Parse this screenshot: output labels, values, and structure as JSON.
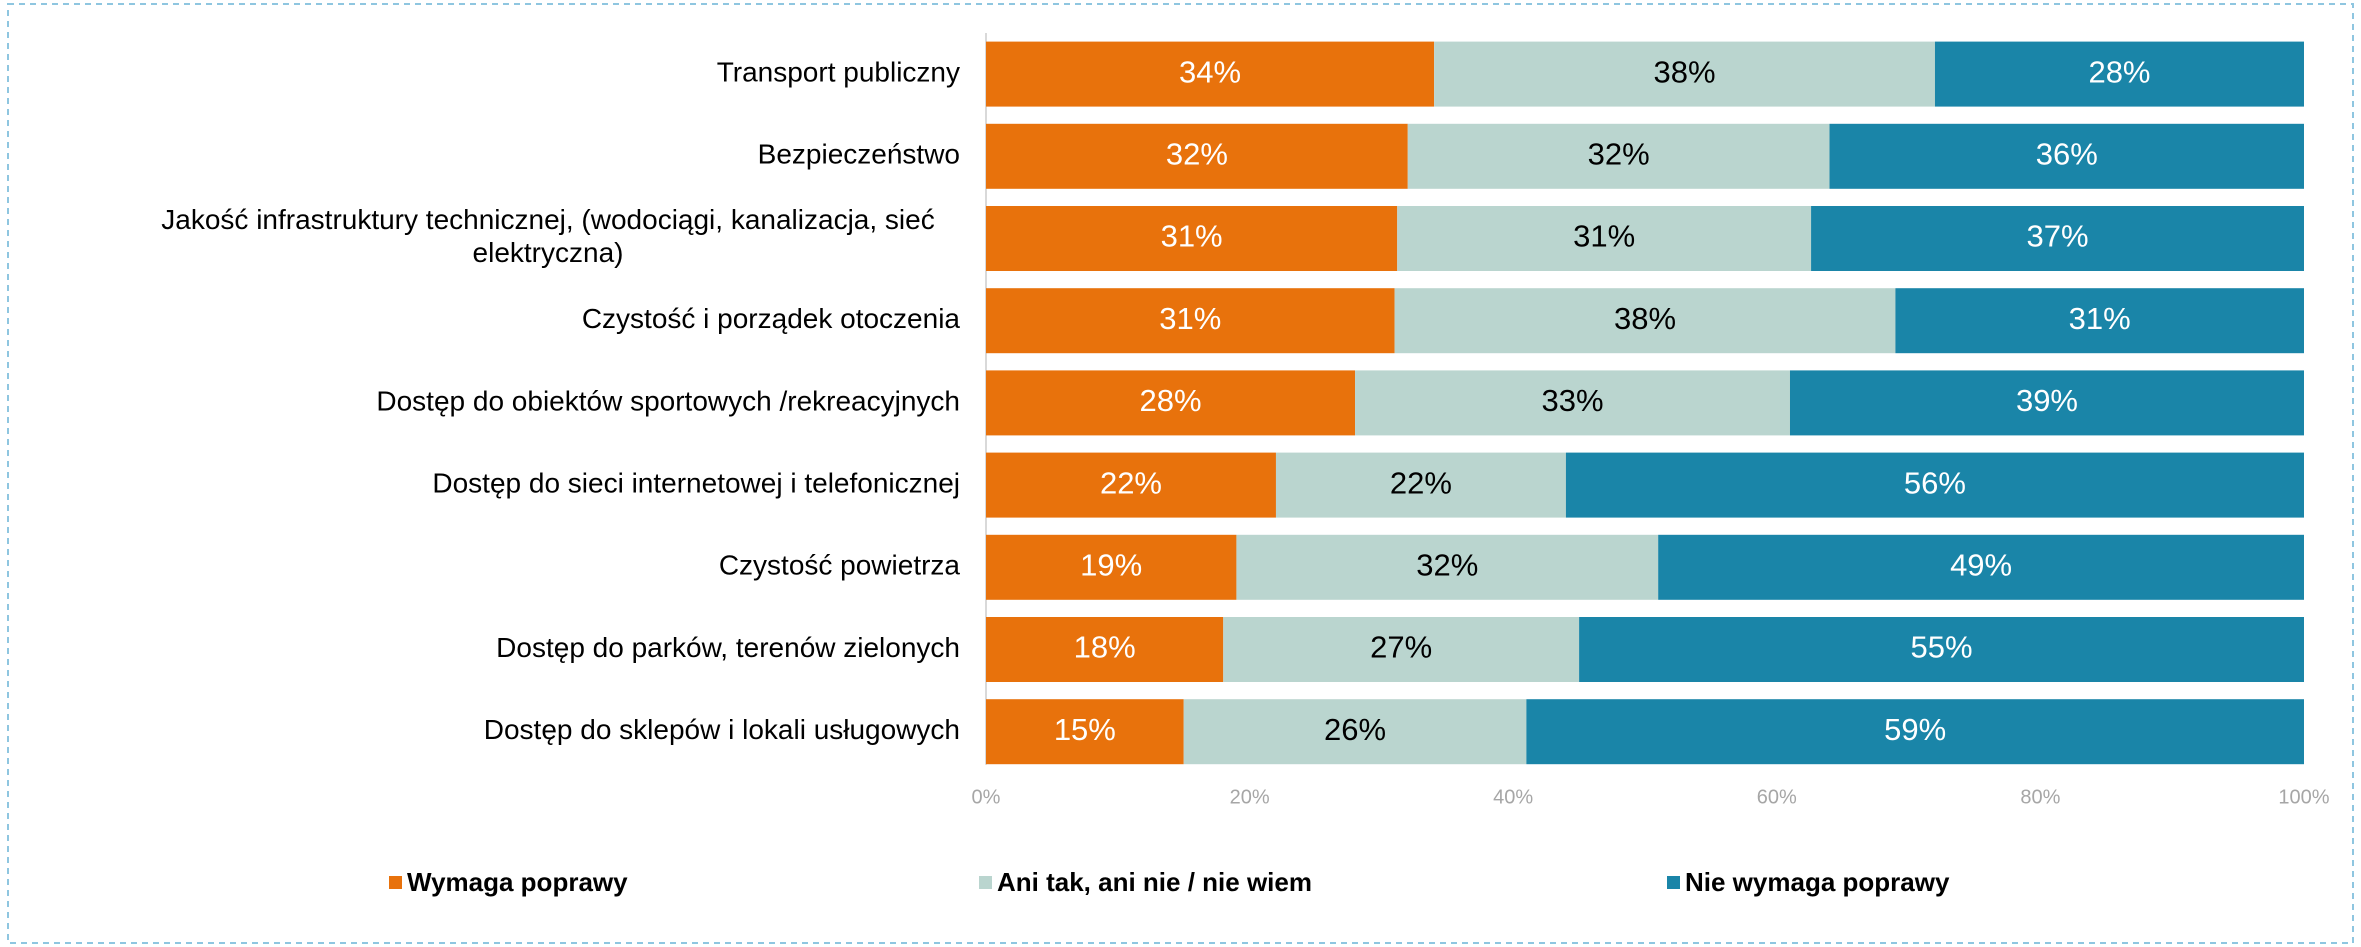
{
  "chart_data": {
    "type": "stacked-bar-horizontal",
    "categories": [
      "Transport publiczny",
      "Bezpieczeństwo",
      "Jakość infrastruktury technicznej, (wodociągi, kanalizacja, sieć\nelektryczna)",
      "Czystość i porządek otoczenia",
      "Dostęp do obiektów sportowych /rekreacyjnych",
      "Dostęp do sieci internetowej i telefonicznej",
      "Czystość powietrza",
      "Dostęp do parków, terenów zielonych",
      "Dostęp do sklepów i lokali usługowych"
    ],
    "series": [
      {
        "name": "Wymaga poprawy",
        "color": "#E8720C",
        "values": [
          34,
          32,
          31.2,
          31,
          28,
          22,
          19,
          18,
          15
        ],
        "value_labels": [
          "34%",
          "32%",
          "31%",
          "31%",
          "28%",
          "22%",
          "19%",
          "18%",
          "15%"
        ]
      },
      {
        "name": "Ani tak, ani nie / nie wiem",
        "color": "#BAD5CF",
        "values": [
          38,
          32,
          31.4,
          38,
          33,
          22,
          32,
          27,
          26
        ],
        "value_labels": [
          "38%",
          "32%",
          "31%",
          "38%",
          "33%",
          "22%",
          "32%",
          "27%",
          "26%"
        ]
      },
      {
        "name": "Nie wymaga poprawy",
        "color": "#1A85A8",
        "values": [
          28,
          36,
          37.4,
          31,
          39,
          56,
          49,
          55,
          59
        ],
        "value_labels": [
          "28%",
          "36%",
          "37%",
          "31%",
          "39%",
          "56%",
          "49%",
          "55%",
          "59%"
        ]
      }
    ],
    "xlim": [
      0,
      100
    ],
    "xticks": [
      {
        "value": 0,
        "label": "0%"
      },
      {
        "value": 20,
        "label": "20%"
      },
      {
        "value": 40,
        "label": "40%"
      },
      {
        "value": 60,
        "label": "60%"
      },
      {
        "value": 80,
        "label": "80%"
      },
      {
        "value": 100,
        "label": "100%"
      }
    ]
  }
}
